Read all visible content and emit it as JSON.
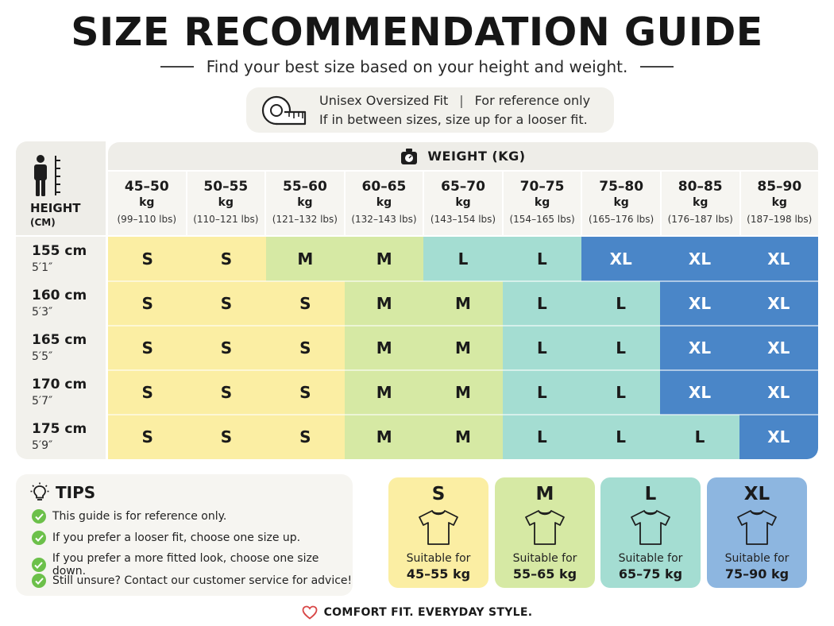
{
  "header": {
    "title": "SIZE RECOMMENDATION GUIDE",
    "subtitle": "Find your best size based on your height and weight."
  },
  "fit_info": {
    "fit": "Unisex Oversized Fit",
    "separator": "|",
    "reference": "For reference only",
    "advice": "If in between sizes, size up for a looser fit.",
    "icon": "measuring-tape-icon"
  },
  "table": {
    "height_label": "HEIGHT",
    "height_unit": "(CM)",
    "weight_label": "WEIGHT (KG)",
    "columns": [
      {
        "range": "45–50",
        "unit": "kg",
        "lbs": "(99–110 lbs)"
      },
      {
        "range": "50–55",
        "unit": "kg",
        "lbs": "(110–121 lbs)"
      },
      {
        "range": "55–60",
        "unit": "kg",
        "lbs": "(121–132 lbs)"
      },
      {
        "range": "60–65",
        "unit": "kg",
        "lbs": "(132–143 lbs)"
      },
      {
        "range": "65–70",
        "unit": "kg",
        "lbs": "(143–154 lbs)"
      },
      {
        "range": "70–75",
        "unit": "kg",
        "lbs": "(154–165 lbs)"
      },
      {
        "range": "75–80",
        "unit": "kg",
        "lbs": "(165–176 lbs)"
      },
      {
        "range": "80–85",
        "unit": "kg",
        "lbs": "(176–187 lbs)"
      },
      {
        "range": "85–90",
        "unit": "kg",
        "lbs": "(187–198 lbs)"
      }
    ],
    "rows": [
      {
        "cm": "155 cm",
        "ft": "5′1″",
        "sizes": [
          "S",
          "S",
          "M",
          "M",
          "L",
          "L",
          "XL",
          "XL",
          "XL"
        ]
      },
      {
        "cm": "160 cm",
        "ft": "5′3″",
        "sizes": [
          "S",
          "S",
          "S",
          "M",
          "M",
          "L",
          "L",
          "XL",
          "XL"
        ]
      },
      {
        "cm": "165 cm",
        "ft": "5′5″",
        "sizes": [
          "S",
          "S",
          "S",
          "M",
          "M",
          "L",
          "L",
          "XL",
          "XL"
        ]
      },
      {
        "cm": "170 cm",
        "ft": "5′7″",
        "sizes": [
          "S",
          "S",
          "S",
          "M",
          "M",
          "L",
          "L",
          "XL",
          "XL"
        ]
      },
      {
        "cm": "175 cm",
        "ft": "5′9″",
        "sizes": [
          "S",
          "S",
          "S",
          "M",
          "M",
          "L",
          "L",
          "L",
          "XL"
        ]
      }
    ]
  },
  "size_colors": {
    "S": "#fbeea3",
    "M": "#d6e9a4",
    "L": "#a4ddd2",
    "XL": "#4a86c8"
  },
  "tips": {
    "title": "TIPS",
    "items": [
      "This guide is for reference only.",
      "If you prefer a looser fit, choose one size up.",
      "If you prefer a more fitted look, choose one size down.",
      "Still unsure? Contact our customer service for advice!"
    ]
  },
  "cards": [
    {
      "size": "S",
      "label": "Suitable for",
      "range": "45–55 kg",
      "bg": "#fbeea3"
    },
    {
      "size": "M",
      "label": "Suitable for",
      "range": "55–65 kg",
      "bg": "#d6e9a4"
    },
    {
      "size": "L",
      "label": "Suitable for",
      "range": "65–75 kg",
      "bg": "#a4ddd2"
    },
    {
      "size": "XL",
      "label": "Suitable for",
      "range": "75–90 kg",
      "bg": "#8db6e0"
    }
  ],
  "footer": {
    "text": "COMFORT FIT. EVERYDAY STYLE.",
    "icon": "heart-icon"
  }
}
